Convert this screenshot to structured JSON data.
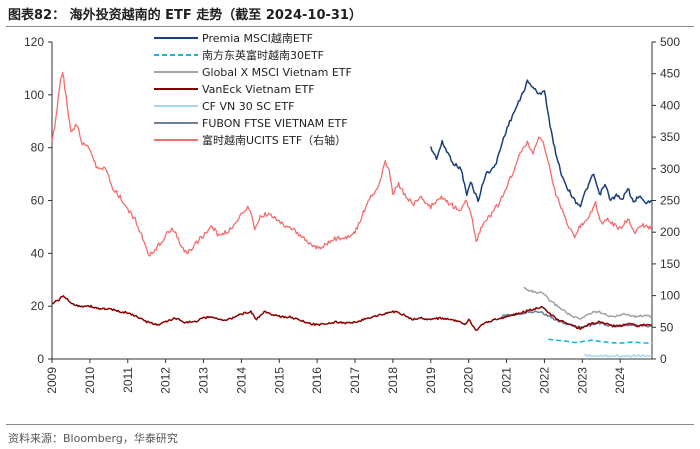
{
  "title": "图表82： 海外投资越南的 ETF 走势（截至 2024-10-31）",
  "source": "资料来源：Bloomberg，华泰研究",
  "chart_data": {
    "type": "line",
    "x_axis": {
      "ticks": [
        "2009",
        "2010",
        "2011",
        "2012",
        "2013",
        "2014",
        "2015",
        "2016",
        "2017",
        "2018",
        "2019",
        "2020",
        "2021",
        "2022",
        "2023",
        "2024"
      ],
      "range": [
        2009.0,
        2024.84
      ]
    },
    "y_left": {
      "ticks": [
        "0",
        "20",
        "40",
        "60",
        "80",
        "100",
        "120"
      ],
      "range": [
        0,
        120
      ]
    },
    "y_right": {
      "ticks": [
        "0",
        "50",
        "100",
        "150",
        "200",
        "250",
        "300",
        "350",
        "400",
        "450",
        "500"
      ],
      "range": [
        0,
        500
      ]
    },
    "series": [
      {
        "name": "Premia MSCI越南ETF",
        "axis": "left",
        "color": "#1a3e7a",
        "dash": "solid",
        "points": [
          [
            2019.0,
            80
          ],
          [
            2019.15,
            76
          ],
          [
            2019.3,
            82
          ],
          [
            2019.45,
            78
          ],
          [
            2019.6,
            74
          ],
          [
            2019.8,
            72
          ],
          [
            2019.95,
            62
          ],
          [
            2020.05,
            67
          ],
          [
            2020.25,
            60
          ],
          [
            2020.45,
            70
          ],
          [
            2020.7,
            73
          ],
          [
            2020.95,
            85
          ],
          [
            2021.15,
            92
          ],
          [
            2021.35,
            98
          ],
          [
            2021.55,
            105
          ],
          [
            2021.7,
            103
          ],
          [
            2021.85,
            100
          ],
          [
            2022.0,
            102
          ],
          [
            2022.15,
            88
          ],
          [
            2022.3,
            78
          ],
          [
            2022.45,
            70
          ],
          [
            2022.6,
            65
          ],
          [
            2022.8,
            60
          ],
          [
            2022.95,
            58
          ],
          [
            2023.1,
            64
          ],
          [
            2023.3,
            70
          ],
          [
            2023.45,
            62
          ],
          [
            2023.6,
            66
          ],
          [
            2023.75,
            60
          ],
          [
            2023.9,
            62
          ],
          [
            2024.05,
            60
          ],
          [
            2024.2,
            65
          ],
          [
            2024.35,
            59
          ],
          [
            2024.5,
            62
          ],
          [
            2024.65,
            59
          ],
          [
            2024.84,
            60
          ]
        ]
      },
      {
        "name": "南方东英富时越南30ETF",
        "axis": "left",
        "color": "#1fb3cc",
        "dash": "dashed",
        "points": [
          [
            2022.1,
            7.5
          ],
          [
            2022.3,
            7.1
          ],
          [
            2022.55,
            6.8
          ],
          [
            2022.8,
            6.2
          ],
          [
            2023.0,
            6.6
          ],
          [
            2023.25,
            7.1
          ],
          [
            2023.5,
            6.6
          ],
          [
            2023.75,
            6.2
          ],
          [
            2024.0,
            6.0
          ],
          [
            2024.3,
            6.4
          ],
          [
            2024.6,
            6.1
          ],
          [
            2024.84,
            6.0
          ]
        ]
      },
      {
        "name": "Global X MSCI Vietnam ETF",
        "axis": "left",
        "color": "#a3a3a3",
        "dash": "solid",
        "points": [
          [
            2021.45,
            27
          ],
          [
            2021.6,
            26
          ],
          [
            2021.8,
            25
          ],
          [
            2021.95,
            25
          ],
          [
            2022.15,
            22
          ],
          [
            2022.35,
            20
          ],
          [
            2022.55,
            18
          ],
          [
            2022.75,
            16
          ],
          [
            2022.95,
            15
          ],
          [
            2023.15,
            17
          ],
          [
            2023.35,
            18
          ],
          [
            2023.55,
            17.5
          ],
          [
            2023.75,
            16
          ],
          [
            2023.95,
            16.5
          ],
          [
            2024.15,
            17
          ],
          [
            2024.4,
            16
          ],
          [
            2024.6,
            16.5
          ],
          [
            2024.84,
            16
          ]
        ]
      },
      {
        "name": "VanEck Vietnam ETF",
        "axis": "left",
        "color": "#8b0000",
        "dash": "solid",
        "points": [
          [
            2009.0,
            21
          ],
          [
            2009.15,
            22
          ],
          [
            2009.3,
            24
          ],
          [
            2009.5,
            21
          ],
          [
            2009.75,
            20
          ],
          [
            2010.0,
            20
          ],
          [
            2010.25,
            19
          ],
          [
            2010.5,
            19
          ],
          [
            2010.75,
            18
          ],
          [
            2011.0,
            17.5
          ],
          [
            2011.25,
            16
          ],
          [
            2011.5,
            14
          ],
          [
            2011.8,
            13
          ],
          [
            2012.0,
            14
          ],
          [
            2012.25,
            15.5
          ],
          [
            2012.5,
            14
          ],
          [
            2012.75,
            14
          ],
          [
            2013.0,
            15.5
          ],
          [
            2013.25,
            16
          ],
          [
            2013.5,
            14.5
          ],
          [
            2013.75,
            15.5
          ],
          [
            2014.0,
            17
          ],
          [
            2014.25,
            18
          ],
          [
            2014.4,
            15
          ],
          [
            2014.6,
            18
          ],
          [
            2014.8,
            17
          ],
          [
            2015.0,
            16
          ],
          [
            2015.25,
            16
          ],
          [
            2015.5,
            15
          ],
          [
            2015.75,
            13.5
          ],
          [
            2016.0,
            13
          ],
          [
            2016.25,
            13.5
          ],
          [
            2016.5,
            14
          ],
          [
            2016.75,
            13.5
          ],
          [
            2017.0,
            14
          ],
          [
            2017.25,
            15
          ],
          [
            2017.5,
            16
          ],
          [
            2017.75,
            17
          ],
          [
            2018.0,
            18
          ],
          [
            2018.25,
            17
          ],
          [
            2018.5,
            15
          ],
          [
            2018.75,
            15.5
          ],
          [
            2019.0,
            15
          ],
          [
            2019.25,
            15.5
          ],
          [
            2019.5,
            15
          ],
          [
            2019.75,
            14
          ],
          [
            2019.9,
            13
          ],
          [
            2020.0,
            15
          ],
          [
            2020.2,
            10.5
          ],
          [
            2020.35,
            13
          ],
          [
            2020.6,
            14.5
          ],
          [
            2020.85,
            15.5
          ],
          [
            2021.0,
            16
          ],
          [
            2021.25,
            17
          ],
          [
            2021.5,
            18
          ],
          [
            2021.75,
            19
          ],
          [
            2021.95,
            20
          ],
          [
            2022.15,
            17
          ],
          [
            2022.35,
            15
          ],
          [
            2022.55,
            14
          ],
          [
            2022.75,
            12.5
          ],
          [
            2022.95,
            11.5
          ],
          [
            2023.15,
            13
          ],
          [
            2023.4,
            14
          ],
          [
            2023.6,
            13.5
          ],
          [
            2023.8,
            12.5
          ],
          [
            2024.0,
            12.5
          ],
          [
            2024.2,
            13.5
          ],
          [
            2024.45,
            12.5
          ],
          [
            2024.65,
            13
          ],
          [
            2024.84,
            12.5
          ]
        ]
      },
      {
        "name": "CF VN 30 SC ETF",
        "axis": "left",
        "color": "#a8d8ec",
        "dash": "solid",
        "points": [
          [
            2023.05,
            1.2
          ],
          [
            2023.3,
            1.3
          ],
          [
            2023.6,
            1.2
          ],
          [
            2023.9,
            1.25
          ],
          [
            2024.2,
            1.2
          ],
          [
            2024.5,
            1.25
          ],
          [
            2024.84,
            1.2
          ]
        ]
      },
      {
        "name": "FUBON FTSE VIETNAM ETF",
        "axis": "left",
        "color": "#6f7f9b",
        "dash": "solid",
        "points": [
          [
            2020.85,
            16
          ],
          [
            2021.0,
            16.5
          ],
          [
            2021.25,
            17
          ],
          [
            2021.5,
            17.5
          ],
          [
            2021.75,
            18
          ],
          [
            2021.95,
            17.5
          ],
          [
            2022.15,
            16
          ],
          [
            2022.35,
            14.5
          ],
          [
            2022.55,
            13.5
          ],
          [
            2022.75,
            12.5
          ],
          [
            2022.95,
            12
          ],
          [
            2023.15,
            12.5
          ],
          [
            2023.4,
            13.5
          ],
          [
            2023.6,
            13
          ],
          [
            2023.8,
            12.5
          ],
          [
            2024.0,
            12.5
          ],
          [
            2024.25,
            13
          ],
          [
            2024.5,
            12.5
          ],
          [
            2024.84,
            12.5
          ]
        ]
      },
      {
        "name": "富时越南UCITS ETF（右轴）",
        "axis": "right",
        "color": "#f26d6d",
        "dash": "solid",
        "points": [
          [
            2009.0,
            340
          ],
          [
            2009.1,
            380
          ],
          [
            2009.2,
            430
          ],
          [
            2009.28,
            455
          ],
          [
            2009.4,
            400
          ],
          [
            2009.5,
            360
          ],
          [
            2009.65,
            370
          ],
          [
            2009.8,
            340
          ],
          [
            2010.0,
            330
          ],
          [
            2010.2,
            300
          ],
          [
            2010.4,
            300
          ],
          [
            2010.6,
            270
          ],
          [
            2010.8,
            255
          ],
          [
            2011.0,
            235
          ],
          [
            2011.2,
            220
          ],
          [
            2011.4,
            190
          ],
          [
            2011.55,
            160
          ],
          [
            2011.75,
            175
          ],
          [
            2012.0,
            195
          ],
          [
            2012.2,
            205
          ],
          [
            2012.4,
            180
          ],
          [
            2012.55,
            165
          ],
          [
            2012.75,
            180
          ],
          [
            2013.0,
            195
          ],
          [
            2013.2,
            210
          ],
          [
            2013.4,
            195
          ],
          [
            2013.6,
            200
          ],
          [
            2013.8,
            210
          ],
          [
            2014.0,
            230
          ],
          [
            2014.2,
            240
          ],
          [
            2014.35,
            205
          ],
          [
            2014.5,
            225
          ],
          [
            2014.75,
            230
          ],
          [
            2015.0,
            215
          ],
          [
            2015.2,
            210
          ],
          [
            2015.45,
            200
          ],
          [
            2015.65,
            190
          ],
          [
            2015.85,
            180
          ],
          [
            2016.0,
            175
          ],
          [
            2016.2,
            180
          ],
          [
            2016.5,
            190
          ],
          [
            2016.75,
            190
          ],
          [
            2017.0,
            200
          ],
          [
            2017.25,
            235
          ],
          [
            2017.45,
            260
          ],
          [
            2017.6,
            270
          ],
          [
            2017.8,
            310
          ],
          [
            2017.9,
            300
          ],
          [
            2018.0,
            260
          ],
          [
            2018.15,
            275
          ],
          [
            2018.35,
            255
          ],
          [
            2018.55,
            245
          ],
          [
            2018.75,
            255
          ],
          [
            2019.0,
            240
          ],
          [
            2019.25,
            255
          ],
          [
            2019.5,
            245
          ],
          [
            2019.75,
            235
          ],
          [
            2019.95,
            250
          ],
          [
            2020.1,
            220
          ],
          [
            2020.2,
            185
          ],
          [
            2020.35,
            210
          ],
          [
            2020.55,
            225
          ],
          [
            2020.8,
            245
          ],
          [
            2021.0,
            270
          ],
          [
            2021.2,
            300
          ],
          [
            2021.4,
            330
          ],
          [
            2021.55,
            340
          ],
          [
            2021.7,
            325
          ],
          [
            2021.85,
            350
          ],
          [
            2022.0,
            335
          ],
          [
            2022.15,
            300
          ],
          [
            2022.3,
            260
          ],
          [
            2022.5,
            230
          ],
          [
            2022.65,
            205
          ],
          [
            2022.8,
            195
          ],
          [
            2022.95,
            210
          ],
          [
            2023.15,
            220
          ],
          [
            2023.35,
            245
          ],
          [
            2023.5,
            215
          ],
          [
            2023.7,
            220
          ],
          [
            2023.85,
            210
          ],
          [
            2024.0,
            205
          ],
          [
            2024.2,
            220
          ],
          [
            2024.4,
            200
          ],
          [
            2024.6,
            210
          ],
          [
            2024.84,
            205
          ]
        ]
      }
    ]
  }
}
